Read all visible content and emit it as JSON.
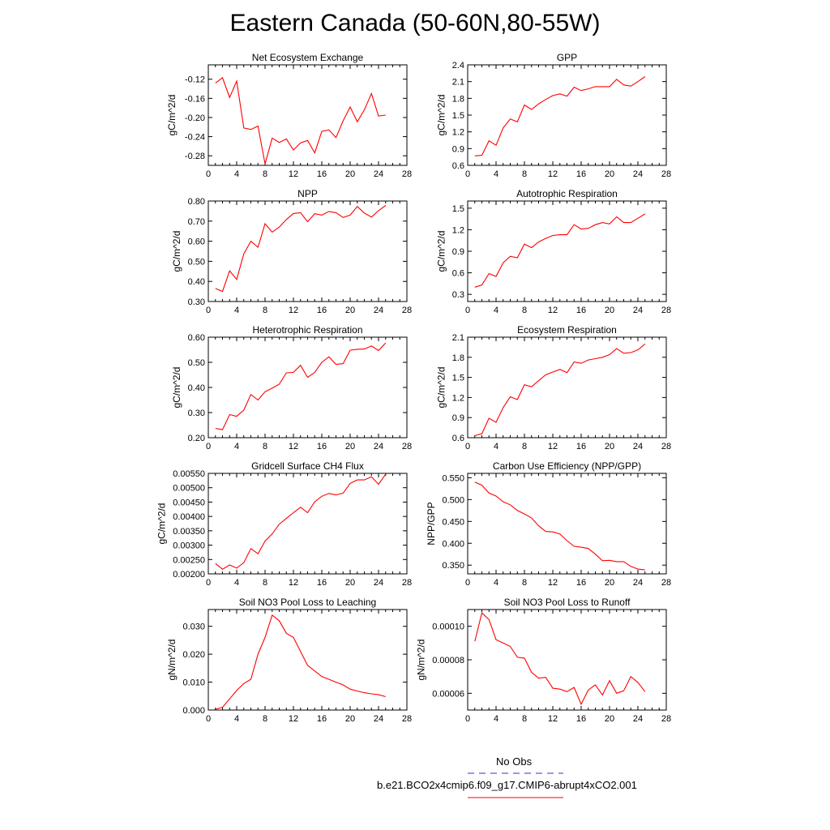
{
  "page": {
    "title": "Eastern Canada (50-60N,80-55W)"
  },
  "colors": {
    "model_line": "#ff0000",
    "obs_line": "#3333cc",
    "axis": "#000000"
  },
  "legend": {
    "obs_label": "No Obs",
    "model_label": "b.e21.BCO2x4cmip6.f09_g17.CMIP6-abrupt4xCO2.001"
  },
  "chart_data": [
    {
      "type": "line",
      "title": "Net Ecosystem Exchange",
      "ylabel": "gC/m^2/d",
      "xlim": [
        0,
        28
      ],
      "xticks": [
        0,
        4,
        8,
        12,
        16,
        20,
        24,
        28
      ],
      "ylim": [
        -0.3,
        -0.09
      ],
      "yticks": [
        -0.28,
        -0.24,
        -0.2,
        -0.16,
        -0.12
      ],
      "ydecimals": 2,
      "x": [
        1,
        2,
        3,
        4,
        5,
        6,
        7,
        8,
        9,
        10,
        11,
        12,
        13,
        14,
        15,
        16,
        17,
        18,
        19,
        20,
        21,
        22,
        23,
        24,
        25
      ],
      "values": [
        -0.128,
        -0.117,
        -0.158,
        -0.124,
        -0.222,
        -0.225,
        -0.218,
        -0.297,
        -0.243,
        -0.252,
        -0.245,
        -0.268,
        -0.253,
        -0.248,
        -0.274,
        -0.229,
        -0.226,
        -0.242,
        -0.207,
        -0.178,
        -0.209,
        -0.184,
        -0.15,
        -0.197,
        -0.195
      ]
    },
    {
      "type": "line",
      "title": "GPP",
      "ylabel": "gC/m^2/d",
      "xlim": [
        0,
        28
      ],
      "xticks": [
        0,
        4,
        8,
        12,
        16,
        20,
        24,
        28
      ],
      "ylim": [
        0.6,
        2.4
      ],
      "yticks": [
        0.6,
        0.9,
        1.2,
        1.5,
        1.8,
        2.1,
        2.4
      ],
      "ydecimals": 1,
      "x": [
        1,
        2,
        3,
        4,
        5,
        6,
        7,
        8,
        9,
        10,
        11,
        12,
        13,
        14,
        15,
        16,
        17,
        18,
        19,
        20,
        21,
        22,
        23,
        24,
        25
      ],
      "values": [
        0.77,
        0.78,
        1.04,
        0.96,
        1.27,
        1.43,
        1.38,
        1.68,
        1.6,
        1.7,
        1.78,
        1.85,
        1.88,
        1.84,
        2.0,
        1.94,
        1.97,
        2.01,
        2.01,
        2.01,
        2.14,
        2.04,
        2.02,
        2.1,
        2.19
      ]
    },
    {
      "type": "line",
      "title": "NPP",
      "ylabel": "gC/m^2/d",
      "xlim": [
        0,
        28
      ],
      "xticks": [
        0,
        4,
        8,
        12,
        16,
        20,
        24,
        28
      ],
      "ylim": [
        0.3,
        0.8
      ],
      "yticks": [
        0.3,
        0.4,
        0.5,
        0.6,
        0.7,
        0.8
      ],
      "ydecimals": 2,
      "x": [
        1,
        2,
        3,
        4,
        5,
        6,
        7,
        8,
        9,
        10,
        11,
        12,
        13,
        14,
        15,
        16,
        17,
        18,
        19,
        20,
        21,
        22,
        23,
        24,
        25
      ],
      "values": [
        0.365,
        0.35,
        0.453,
        0.41,
        0.537,
        0.6,
        0.57,
        0.687,
        0.645,
        0.67,
        0.708,
        0.738,
        0.742,
        0.697,
        0.737,
        0.73,
        0.748,
        0.742,
        0.718,
        0.73,
        0.773,
        0.74,
        0.72,
        0.752,
        0.778
      ]
    },
    {
      "type": "line",
      "title": "Autotrophic Respiration",
      "ylabel": "gC/m^2/d",
      "xlim": [
        0,
        28
      ],
      "xticks": [
        0,
        4,
        8,
        12,
        16,
        20,
        24,
        28
      ],
      "ylim": [
        0.2,
        1.6
      ],
      "yticks": [
        0.3,
        0.6,
        0.9,
        1.2,
        1.5
      ],
      "ydecimals": 1,
      "x": [
        1,
        2,
        3,
        4,
        5,
        6,
        7,
        8,
        9,
        10,
        11,
        12,
        13,
        14,
        15,
        16,
        17,
        18,
        19,
        20,
        21,
        22,
        23,
        24,
        25
      ],
      "values": [
        0.4,
        0.43,
        0.59,
        0.55,
        0.74,
        0.83,
        0.81,
        1.0,
        0.95,
        1.03,
        1.08,
        1.12,
        1.13,
        1.13,
        1.27,
        1.21,
        1.22,
        1.27,
        1.3,
        1.28,
        1.38,
        1.3,
        1.3,
        1.36,
        1.42
      ]
    },
    {
      "type": "line",
      "title": "Heterotrophic Respiration",
      "ylabel": "gC/m^2/d",
      "xlim": [
        0,
        28
      ],
      "xticks": [
        0,
        4,
        8,
        12,
        16,
        20,
        24,
        28
      ],
      "ylim": [
        0.2,
        0.6
      ],
      "yticks": [
        0.2,
        0.3,
        0.4,
        0.5,
        0.6
      ],
      "ydecimals": 2,
      "x": [
        1,
        2,
        3,
        4,
        5,
        6,
        7,
        8,
        9,
        10,
        11,
        12,
        13,
        14,
        15,
        16,
        17,
        18,
        19,
        20,
        21,
        22,
        23,
        24,
        25
      ],
      "values": [
        0.237,
        0.232,
        0.292,
        0.285,
        0.31,
        0.372,
        0.35,
        0.383,
        0.397,
        0.413,
        0.458,
        0.46,
        0.488,
        0.44,
        0.46,
        0.5,
        0.522,
        0.492,
        0.495,
        0.548,
        0.552,
        0.553,
        0.565,
        0.547,
        0.577
      ]
    },
    {
      "type": "line",
      "title": "Ecosystem Respiration",
      "ylabel": "gC/m^2/d",
      "xlim": [
        0,
        28
      ],
      "xticks": [
        0,
        4,
        8,
        12,
        16,
        20,
        24,
        28
      ],
      "ylim": [
        0.6,
        2.1
      ],
      "yticks": [
        0.6,
        0.9,
        1.2,
        1.5,
        1.8,
        2.1
      ],
      "ydecimals": 1,
      "x": [
        1,
        2,
        3,
        4,
        5,
        6,
        7,
        8,
        9,
        10,
        11,
        12,
        13,
        14,
        15,
        16,
        17,
        18,
        19,
        20,
        21,
        22,
        23,
        24,
        25
      ],
      "values": [
        0.63,
        0.66,
        0.89,
        0.83,
        1.05,
        1.21,
        1.17,
        1.39,
        1.36,
        1.45,
        1.54,
        1.58,
        1.62,
        1.57,
        1.73,
        1.71,
        1.76,
        1.78,
        1.8,
        1.84,
        1.93,
        1.86,
        1.87,
        1.91,
        2.0
      ]
    },
    {
      "type": "line",
      "title": "Gridcell Surface CH4 Flux",
      "ylabel": "gC/m^2/d",
      "xlim": [
        0,
        28
      ],
      "xticks": [
        0,
        4,
        8,
        12,
        16,
        20,
        24,
        28
      ],
      "ylim": [
        0.002,
        0.0055
      ],
      "yticks": [
        0.002,
        0.0025,
        0.003,
        0.0035,
        0.004,
        0.0045,
        0.005,
        0.0055
      ],
      "ydecimals": 5,
      "x": [
        1,
        2,
        3,
        4,
        5,
        6,
        7,
        8,
        9,
        10,
        11,
        12,
        13,
        14,
        15,
        16,
        17,
        18,
        19,
        20,
        21,
        22,
        23,
        24,
        25
      ],
      "values": [
        0.00236,
        0.00216,
        0.00231,
        0.0022,
        0.00239,
        0.00288,
        0.0027,
        0.00314,
        0.00339,
        0.00373,
        0.00393,
        0.00413,
        0.00432,
        0.00413,
        0.00451,
        0.0047,
        0.0048,
        0.00475,
        0.00481,
        0.00515,
        0.00527,
        0.00527,
        0.00538,
        0.00512,
        0.00547
      ]
    },
    {
      "type": "line",
      "title": "Carbon Use Efficiency (NPP/GPP)",
      "ylabel": "NPP/GPP",
      "xlim": [
        0,
        28
      ],
      "xticks": [
        0,
        4,
        8,
        12,
        16,
        20,
        24,
        28
      ],
      "ylim": [
        0.33,
        0.56
      ],
      "yticks": [
        0.35,
        0.4,
        0.45,
        0.5,
        0.55
      ],
      "ydecimals": 3,
      "x": [
        1,
        2,
        3,
        4,
        5,
        6,
        7,
        8,
        9,
        10,
        11,
        12,
        13,
        14,
        15,
        16,
        17,
        18,
        19,
        20,
        21,
        22,
        23,
        24,
        25
      ],
      "values": [
        0.54,
        0.533,
        0.515,
        0.508,
        0.495,
        0.488,
        0.475,
        0.467,
        0.458,
        0.44,
        0.427,
        0.426,
        0.421,
        0.406,
        0.393,
        0.391,
        0.388,
        0.375,
        0.36,
        0.361,
        0.358,
        0.358,
        0.347,
        0.341,
        0.339
      ]
    },
    {
      "type": "line",
      "title": "Soil NO3 Pool Loss to Leaching",
      "ylabel": "gN/m^2/d",
      "xlim": [
        0,
        28
      ],
      "xticks": [
        0,
        4,
        8,
        12,
        16,
        20,
        24,
        28
      ],
      "ylim": [
        0,
        0.036
      ],
      "yticks": [
        0.0,
        0.01,
        0.02,
        0.03
      ],
      "ydecimals": 3,
      "x": [
        1,
        2,
        3,
        4,
        5,
        6,
        7,
        8,
        9,
        10,
        11,
        12,
        13,
        14,
        15,
        16,
        17,
        18,
        19,
        20,
        21,
        22,
        23,
        24,
        25
      ],
      "values": [
        0.0003,
        0.001,
        0.004,
        0.007,
        0.0095,
        0.011,
        0.02,
        0.026,
        0.034,
        0.032,
        0.0275,
        0.026,
        0.021,
        0.016,
        0.014,
        0.012,
        0.011,
        0.01,
        0.009,
        0.0075,
        0.0068,
        0.0062,
        0.0058,
        0.0055,
        0.0048
      ]
    },
    {
      "type": "line",
      "title": "Soil NO3 Pool Loss to Runoff",
      "ylabel": "gN/m^2/d",
      "xlim": [
        0,
        28
      ],
      "xticks": [
        0,
        4,
        8,
        12,
        16,
        20,
        24,
        28
      ],
      "ylim": [
        5e-05,
        0.00011
      ],
      "yticks": [
        6e-05,
        8e-05,
        0.0001
      ],
      "ydecimals": 5,
      "x": [
        1,
        2,
        3,
        4,
        5,
        6,
        7,
        8,
        9,
        10,
        11,
        12,
        13,
        14,
        15,
        16,
        17,
        18,
        19,
        20,
        21,
        22,
        23,
        24,
        25
      ],
      "values": [
        9.1e-05,
        0.000108,
        0.000104,
        9.2e-05,
        9e-05,
        8.8e-05,
        8.15e-05,
        8.1e-05,
        7.25e-05,
        6.9e-05,
        6.95e-05,
        6.3e-05,
        6.25e-05,
        6.1e-05,
        6.35e-05,
        5.35e-05,
        6.2e-05,
        6.5e-05,
        5.9e-05,
        6.75e-05,
        6e-05,
        6.15e-05,
        7e-05,
        6.65e-05,
        6.1e-05
      ]
    }
  ]
}
